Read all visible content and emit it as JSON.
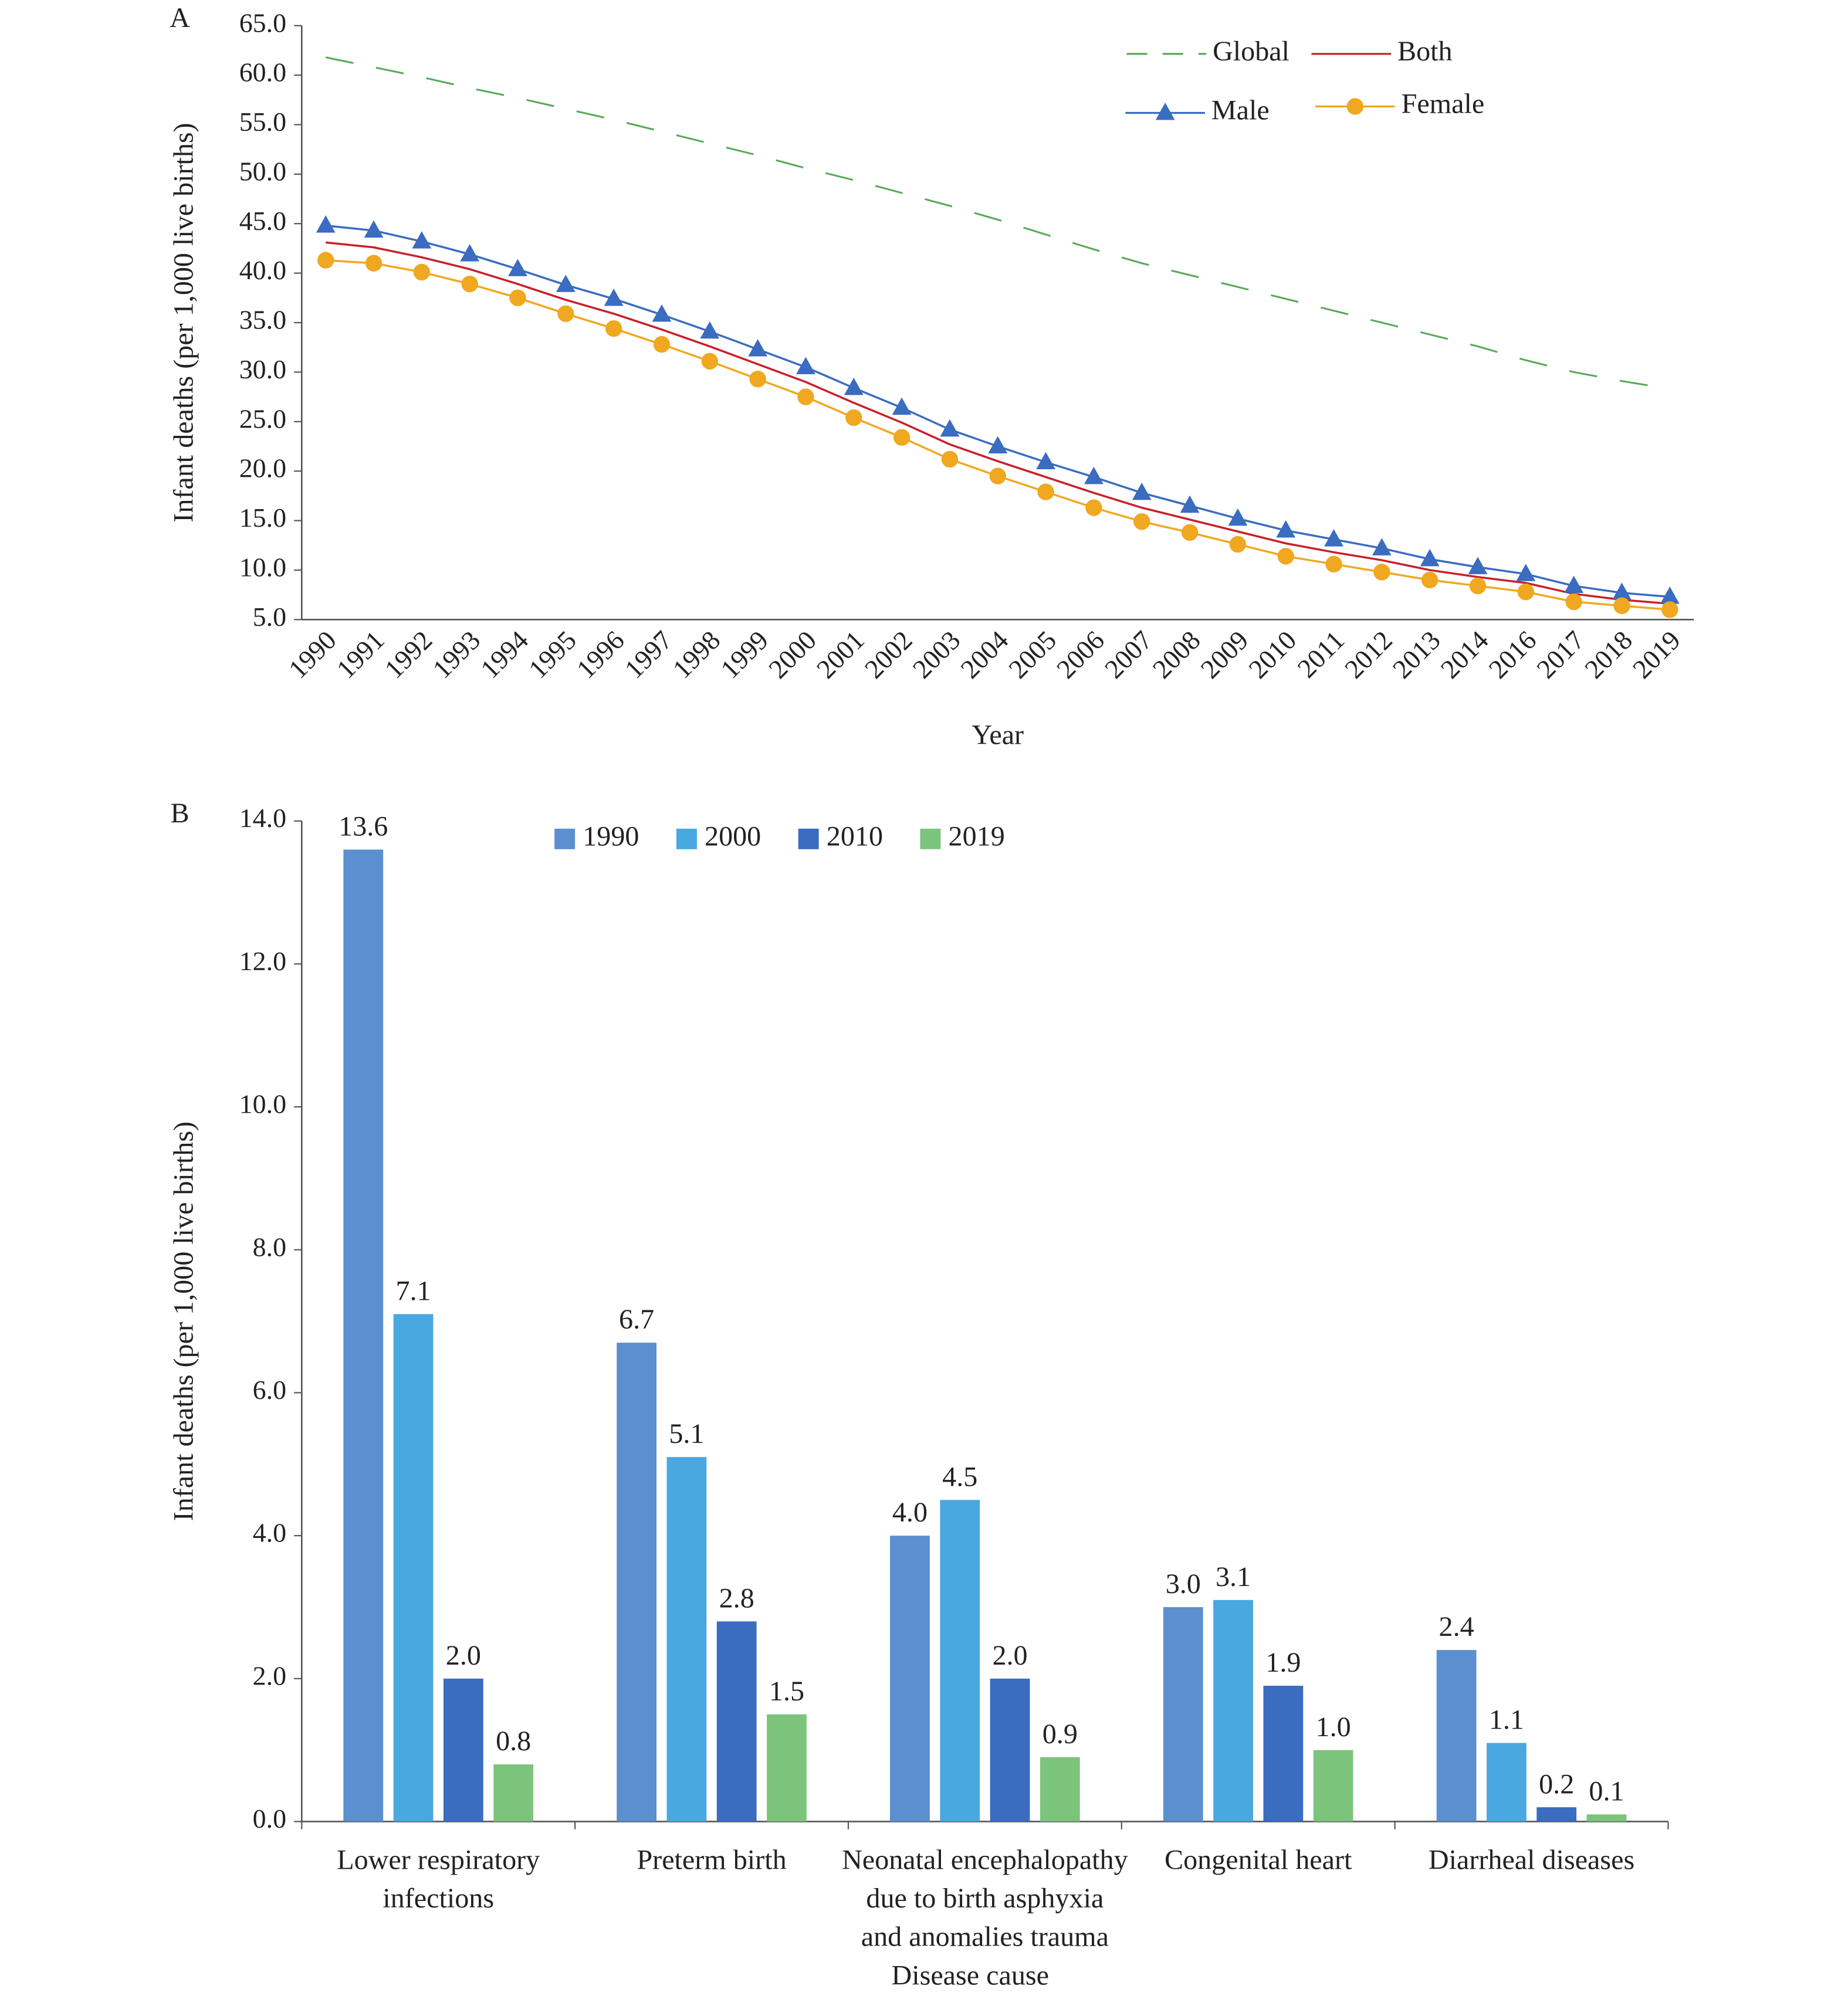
{
  "chart_data": [
    {
      "type": "line",
      "panel": "A",
      "y_label": "Infant deaths (per 1,000 live births)",
      "x_label": "Year",
      "categories": [
        "1990",
        "1991",
        "1992",
        "1993",
        "1994",
        "1995",
        "1996",
        "1997",
        "1998",
        "1999",
        "2000",
        "2001",
        "2002",
        "2003",
        "2004",
        "2005",
        "2006",
        "2007",
        "2008",
        "2009",
        "2010",
        "2011",
        "2012",
        "2013",
        "2014",
        "2016",
        "2017",
        "2018",
        "2019"
      ],
      "series": [
        {
          "name": "Global",
          "color": "#5aa85a",
          "dash": true,
          "marker": "none",
          "values": [
            61.8,
            60.8,
            59.8,
            58.7,
            57.7,
            56.6,
            55.5,
            54.3,
            53.1,
            51.9,
            50.6,
            49.4,
            48.1,
            46.8,
            45.4,
            43.9,
            42.4,
            41.0,
            39.8,
            38.6,
            37.4,
            36.2,
            35.0,
            33.8,
            32.6,
            31.2,
            30.0,
            29.1,
            28.3
          ]
        },
        {
          "name": "Both",
          "color": "#c8202a",
          "dash": false,
          "marker": "none",
          "values": [
            43.1,
            42.6,
            41.6,
            40.4,
            38.9,
            37.3,
            35.9,
            34.3,
            32.6,
            30.8,
            29.0,
            26.9,
            24.9,
            22.7,
            21.0,
            19.4,
            17.8,
            16.3,
            15.1,
            13.9,
            12.7,
            11.8,
            11.0,
            10.0,
            9.3,
            8.7,
            7.6,
            7.0,
            6.6
          ]
        },
        {
          "name": "Male",
          "color": "#3a6cc0",
          "dash": false,
          "marker": "triangle",
          "values": [
            44.8,
            44.3,
            43.2,
            41.9,
            40.4,
            38.8,
            37.4,
            35.8,
            34.1,
            32.3,
            30.5,
            28.4,
            26.4,
            24.2,
            22.5,
            20.9,
            19.4,
            17.8,
            16.5,
            15.2,
            14.0,
            13.1,
            12.2,
            11.1,
            10.3,
            9.6,
            8.4,
            7.7,
            7.3
          ]
        },
        {
          "name": "Female",
          "color": "#f0a820",
          "dash": false,
          "marker": "circle",
          "values": [
            41.3,
            41.0,
            40.1,
            38.9,
            37.5,
            35.9,
            34.4,
            32.8,
            31.1,
            29.3,
            27.5,
            25.4,
            23.4,
            21.2,
            19.5,
            17.9,
            16.3,
            14.9,
            13.8,
            12.6,
            11.4,
            10.6,
            9.8,
            9.0,
            8.4,
            7.8,
            6.8,
            6.4,
            6.0
          ]
        }
      ],
      "ylim": [
        5,
        65
      ],
      "yticks": [
        {
          "value": 5,
          "label": "5.0"
        },
        {
          "value": 10,
          "label": "10.0"
        },
        {
          "value": 15,
          "label": "15.0"
        },
        {
          "value": 20,
          "label": "20.0"
        },
        {
          "value": 25,
          "label": "25.0"
        },
        {
          "value": 30,
          "label": "30.0"
        },
        {
          "value": 35,
          "label": "35.0"
        },
        {
          "value": 40,
          "label": "40.0"
        },
        {
          "value": 45,
          "label": "45.0"
        },
        {
          "value": 50,
          "label": "50.0"
        },
        {
          "value": 55,
          "label": "55.0"
        },
        {
          "value": 60,
          "label": "60.0"
        },
        {
          "value": 65,
          "label": "65.0"
        }
      ],
      "grid": false,
      "legend": "top-right"
    },
    {
      "type": "bar",
      "panel": "B",
      "y_label": "Infant deaths (per 1,000 live births)",
      "x_label": "Disease cause",
      "categories": [
        "Lower respiratory\ninfections",
        "Preterm birth",
        "Neonatal encephalopathy\ndue to birth asphyxia\nand anomalies trauma",
        "Congenital heart",
        "Diarrheal diseases"
      ],
      "series": [
        {
          "name": "1990",
          "color": "#5b8fcf",
          "values": [
            13.6,
            6.7,
            4.0,
            3.0,
            2.4
          ],
          "value_labels": [
            "13.6",
            "6.7",
            "4.0",
            "3.0",
            "2.4"
          ]
        },
        {
          "name": "2000",
          "color": "#4aa8e0",
          "values": [
            7.1,
            5.1,
            4.5,
            3.1,
            1.1
          ],
          "value_labels": [
            "7.1",
            "5.1",
            "4.5",
            "3.1",
            "1.1"
          ]
        },
        {
          "name": "2010",
          "color": "#3a6cc0",
          "values": [
            2.0,
            2.8,
            2.0,
            1.9,
            0.2
          ],
          "value_labels": [
            "2.0",
            "2.8",
            "2.0",
            "1.9",
            "0.2"
          ]
        },
        {
          "name": "2019",
          "color": "#7cc47c",
          "values": [
            0.8,
            1.5,
            0.9,
            1.0,
            0.1
          ],
          "value_labels": [
            "0.8",
            "1.5",
            "0.9",
            "1.0",
            "0.1"
          ]
        }
      ],
      "ylim": [
        0,
        14
      ],
      "yticks": [
        {
          "value": 0,
          "label": "0.0"
        },
        {
          "value": 2,
          "label": "2.0"
        },
        {
          "value": 4,
          "label": "4.0"
        },
        {
          "value": 6,
          "label": "6.0"
        },
        {
          "value": 8,
          "label": "8.0"
        },
        {
          "value": 10,
          "label": "10.0"
        },
        {
          "value": 12,
          "label": "12.0"
        },
        {
          "value": 14,
          "label": "14.0"
        }
      ],
      "grid": false,
      "legend": "top"
    }
  ]
}
